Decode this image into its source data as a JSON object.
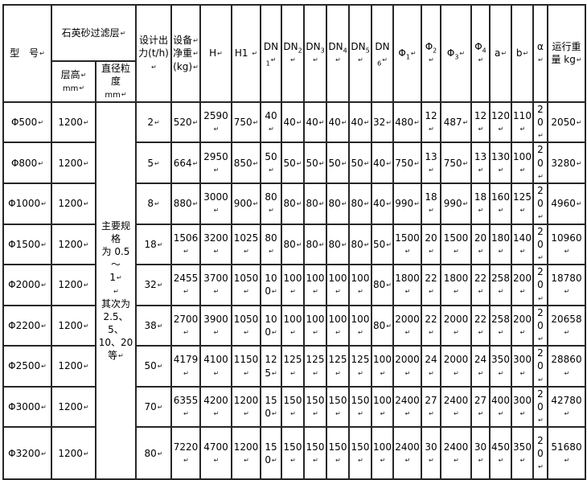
{
  "eol_mark": "↵",
  "colors": {
    "border": "#262626",
    "text": "#000000",
    "background": "#ffffff"
  },
  "table": {
    "header": {
      "model": "型　号↵",
      "filter_layer_group": "石英砂过滤层↵",
      "layer_height": {
        "main": "层高↵",
        "unit": "mm↵"
      },
      "particle_size": {
        "main": "直径粒度",
        "unit": "mm↵"
      },
      "design_output": "设计出\n力(t/h)↵",
      "net_weight": "设备↵\n净重↵\n(kg)↵",
      "h": "H↵",
      "h1": "H1 ↵",
      "dn_columns": [
        {
          "base": "DN",
          "sub": "1"
        },
        {
          "base": "DN",
          "sub": "2"
        },
        {
          "base": "DN",
          "sub": "3"
        },
        {
          "base": "DN",
          "sub": "4"
        },
        {
          "base": "DN",
          "sub": "5"
        },
        {
          "base": "DN",
          "sub": "6"
        }
      ],
      "phi_columns": [
        {
          "base": "Φ",
          "sub": "1"
        },
        {
          "base": "Φ",
          "sub": "2"
        },
        {
          "base": "Φ",
          "sub": "3"
        },
        {
          "base": "Φ",
          "sub": "4"
        }
      ],
      "a": "a↵",
      "b": "b↵",
      "alpha": "α ↵",
      "running_weight": "运行重\n量 kg↵"
    },
    "particle_size_note": "主要规格\n为 0.5～\n1↵\n↵\n其次为\n2.5、5、\n10、20 等↵",
    "rows": [
      {
        "model": "Φ500",
        "layer_height": "1200",
        "output": "2",
        "net_weight": "520",
        "H": "2590",
        "H1": "750",
        "DN": [
          "40",
          "40",
          "40",
          "40",
          "40",
          "32"
        ],
        "Phi": [
          "480",
          "12",
          "487",
          "12"
        ],
        "a": "120",
        "b": "110",
        "alpha": "20",
        "running_weight": "2050"
      },
      {
        "model": "Φ800",
        "layer_height": "1200",
        "output": "5",
        "net_weight": "664",
        "H": "2950",
        "H1": "850",
        "DN": [
          "50",
          "50",
          "50",
          "50",
          "50",
          "40"
        ],
        "Phi": [
          "750",
          "13",
          "750",
          "13"
        ],
        "a": "130",
        "b": "100",
        "alpha": "20",
        "running_weight": "3280"
      },
      {
        "model": "Φ1000",
        "layer_height": "1200",
        "output": "8",
        "net_weight": "880",
        "H": "3000",
        "H1": "900",
        "DN": [
          "80",
          "80",
          "80",
          "80",
          "80",
          "40"
        ],
        "Phi": [
          "990",
          "18",
          "990",
          "18"
        ],
        "a": "160",
        "b": "125",
        "alpha": "20",
        "running_weight": "4960"
      },
      {
        "model": "Φ1500",
        "layer_height": "1200",
        "output": "18",
        "net_weight": "1506",
        "H": "3200",
        "H1": "1025",
        "DN": [
          "80",
          "80",
          "80",
          "80",
          "80",
          "50"
        ],
        "Phi": [
          "1500",
          "20",
          "1500",
          "20"
        ],
        "a": "180",
        "b": "140",
        "alpha": "20",
        "running_weight": "10960"
      },
      {
        "model": "Φ2000",
        "layer_height": "1200",
        "output": "32",
        "net_weight": "2455",
        "H": "3700",
        "H1": "1050",
        "DN": [
          "100",
          "100",
          "100",
          "100",
          "100",
          "80"
        ],
        "Phi": [
          "1800",
          "22",
          "1800",
          "22"
        ],
        "a": "258",
        "b": "200",
        "alpha": "20",
        "running_weight": "18780"
      },
      {
        "model": "Φ2200",
        "layer_height": "1200",
        "output": "38",
        "net_weight": "2700",
        "H": "3900",
        "H1": "1050",
        "DN": [
          "100",
          "100",
          "100",
          "100",
          "100",
          "80"
        ],
        "Phi": [
          "2000",
          "22",
          "2000",
          "22"
        ],
        "a": "258",
        "b": "200",
        "alpha": "20",
        "running_weight": "20658"
      },
      {
        "model": "Φ2500",
        "layer_height": "1200",
        "output": "50",
        "net_weight": "4179",
        "H": "4100",
        "H1": "1150",
        "DN": [
          "125",
          "125",
          "125",
          "125",
          "125",
          "100"
        ],
        "Phi": [
          "2000",
          "24",
          "2000",
          "24"
        ],
        "a": "350",
        "b": "300",
        "alpha": "20",
        "running_weight": "28860"
      },
      {
        "model": "Φ3000",
        "layer_height": "1200",
        "output": "70",
        "net_weight": "6355",
        "H": "4200",
        "H1": "1200",
        "DN": [
          "150",
          "150",
          "150",
          "150",
          "150",
          "100"
        ],
        "Phi": [
          "2400",
          "27",
          "2400",
          "27"
        ],
        "a": "400",
        "b": "300",
        "alpha": "20",
        "running_weight": "42780"
      },
      {
        "model": "Φ3200",
        "layer_height": "1200",
        "output": "80",
        "net_weight": "7220",
        "H": "4700",
        "H1": "1200",
        "DN": [
          "150",
          "150",
          "150",
          "150",
          "150",
          "100"
        ],
        "Phi": [
          "2400",
          "30",
          "2400",
          "30"
        ],
        "a": "450",
        "b": "350",
        "alpha": "20",
        "running_weight": "51680"
      }
    ]
  }
}
